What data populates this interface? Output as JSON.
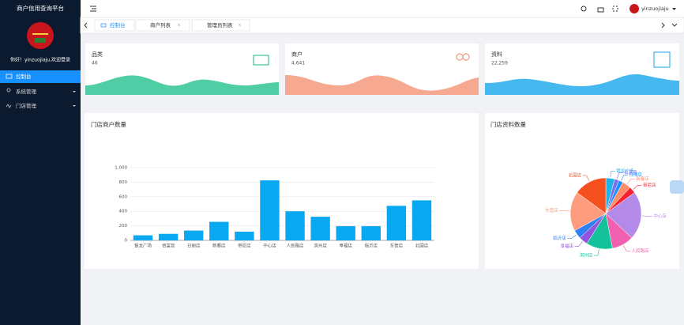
{
  "sidebar": {
    "title": "商户信用查询平台",
    "greeting": "你好！yinzuojiaju,欢迎登录",
    "menu": [
      "控制台",
      "系统管理",
      "门店管理"
    ]
  },
  "header": {
    "user": "yinzuojiaju"
  },
  "tabs": [
    "控制台",
    "商户列表",
    "管理员列表"
  ],
  "cards": [
    {
      "label": "品类",
      "value": "46"
    },
    {
      "label": "商户",
      "value": "4,641"
    },
    {
      "label": "资料",
      "value": "22,259"
    }
  ],
  "chart_data": [
    {
      "type": "bar",
      "title": "门店商户数量",
      "categories": [
        "银龙广场",
        "佰富宫",
        "日丽店",
        "新春店",
        "帝尼店",
        "中心店",
        "人民路店",
        "滨州店",
        "阜福店",
        "临沂店",
        "东营店",
        "北国店"
      ],
      "values": [
        70,
        90,
        135,
        255,
        120,
        825,
        400,
        325,
        195,
        195,
        475,
        550
      ],
      "color": "#0aa8f0",
      "ylim": [
        0,
        1000
      ],
      "yticks": [
        0,
        200,
        400,
        600,
        800,
        {
          "value": 1000,
          "label": "1,000"
        }
      ],
      "grid": true
    },
    {
      "type": "pie",
      "title": "门店资料数量",
      "categories": [
        "银龙广场",
        "佰富宫",
        "日丽店",
        "新春店",
        "帝尼店",
        "中心店",
        "人民路店",
        "滨州店",
        "阜福店",
        "临沂店",
        "东营店",
        "北国店"
      ],
      "values": [
        4,
        2,
        2,
        4,
        3,
        22,
        10,
        12,
        4,
        4,
        18,
        15
      ],
      "colors": [
        "#1fb3e8",
        "#7b6cf0",
        "#1890ff",
        "#ff8c6b",
        "#f5222d",
        "#b38ae8",
        "#f05fb0",
        "#13c29a",
        "#9254de",
        "#2f7ff5",
        "#ff9c7e",
        "#f5501e"
      ]
    }
  ]
}
